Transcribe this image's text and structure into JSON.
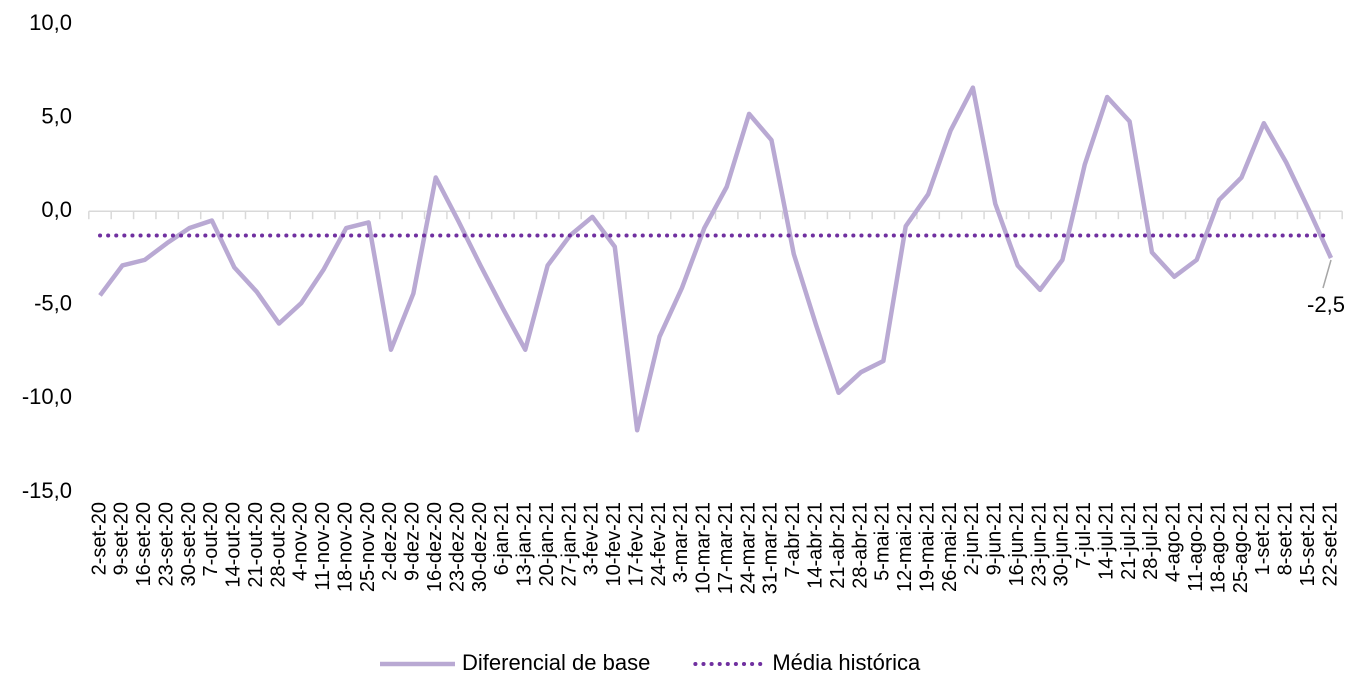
{
  "chart_data": {
    "type": "line",
    "categories": [
      "2-set-20",
      "9-set-20",
      "16-set-20",
      "23-set-20",
      "30-set-20",
      "7-out-20",
      "14-out-20",
      "21-out-20",
      "28-out-20",
      "4-nov-20",
      "11-nov-20",
      "18-nov-20",
      "25-nov-20",
      "2-dez-20",
      "9-dez-20",
      "16-dez-20",
      "23-dez-20",
      "30-dez-20",
      "6-jan-21",
      "13-jan-21",
      "20-jan-21",
      "27-jan-21",
      "3-fev-21",
      "10-fev-21",
      "17-fev-21",
      "24-fev-21",
      "3-mar-21",
      "10-mar-21",
      "17-mar-21",
      "24-mar-21",
      "31-mar-21",
      "7-abr-21",
      "14-abr-21",
      "21-abr-21",
      "28-abr-21",
      "5-mai-21",
      "12-mai-21",
      "19-mai-21",
      "26-mai-21",
      "2-jun-21",
      "9-jun-21",
      "16-jun-21",
      "23-jun-21",
      "30-jun-21",
      "7-jul-21",
      "14-jul-21",
      "21-jul-21",
      "28-jul-21",
      "4-ago-21",
      "11-ago-21",
      "18-ago-21",
      "25-ago-21",
      "1-set-21",
      "8-set-21",
      "15-set-21",
      "22-set-21"
    ],
    "series": [
      {
        "name": "Diferencial de base",
        "color": "#b9a9d3",
        "style": "solid",
        "values": [
          -4.5,
          -2.9,
          -2.6,
          -1.7,
          -0.9,
          -0.5,
          -3.0,
          -4.3,
          -6.0,
          -4.9,
          -3.1,
          -0.9,
          -0.6,
          -7.4,
          -4.4,
          1.8,
          -0.5,
          -2.9,
          -5.2,
          -7.4,
          -2.9,
          -1.3,
          -0.3,
          -1.9,
          -11.7,
          -6.7,
          -4.1,
          -0.9,
          1.3,
          5.2,
          3.8,
          -2.3,
          -6.1,
          -9.7,
          -8.6,
          -8.0,
          -0.8,
          0.9,
          4.3,
          6.6,
          0.4,
          -2.9,
          -4.2,
          -2.6,
          2.5,
          6.1,
          4.8,
          -2.2,
          -3.5,
          -2.6,
          0.6,
          1.8,
          4.7,
          2.6,
          0.1,
          -2.5
        ],
        "value_labels": [
          null,
          null,
          null,
          null,
          null,
          null,
          null,
          null,
          null,
          null,
          null,
          null,
          null,
          null,
          null,
          null,
          null,
          null,
          null,
          null,
          null,
          null,
          null,
          null,
          null,
          null,
          null,
          null,
          null,
          null,
          null,
          null,
          null,
          null,
          null,
          null,
          null,
          null,
          null,
          null,
          null,
          null,
          null,
          null,
          null,
          null,
          null,
          null,
          null,
          null,
          null,
          null,
          null,
          null,
          null,
          "-2,5"
        ]
      },
      {
        "name": "Média histórica",
        "color": "#7030a0",
        "style": "dotted",
        "values": [
          -1.3,
          -1.3,
          -1.3,
          -1.3,
          -1.3,
          -1.3,
          -1.3,
          -1.3,
          -1.3,
          -1.3,
          -1.3,
          -1.3,
          -1.3,
          -1.3,
          -1.3,
          -1.3,
          -1.3,
          -1.3,
          -1.3,
          -1.3,
          -1.3,
          -1.3,
          -1.3,
          -1.3,
          -1.3,
          -1.3,
          -1.3,
          -1.3,
          -1.3,
          -1.3,
          -1.3,
          -1.3,
          -1.3,
          -1.3,
          -1.3,
          -1.3,
          -1.3,
          -1.3,
          -1.3,
          -1.3,
          -1.3,
          -1.3,
          -1.3,
          -1.3,
          -1.3,
          -1.3,
          -1.3,
          -1.3,
          -1.3,
          -1.3,
          -1.3,
          -1.3,
          -1.3,
          -1.3,
          -1.3,
          -1.3
        ]
      }
    ],
    "ylim": [
      -15,
      10
    ],
    "yticks": [
      {
        "value": -15,
        "label": "-15,0"
      },
      {
        "value": -10,
        "label": "-10,0"
      },
      {
        "value": -5,
        "label": "-5,0"
      },
      {
        "value": 0,
        "label": "0,0"
      },
      {
        "value": 5,
        "label": "5,0"
      },
      {
        "value": 10,
        "label": "10,0"
      }
    ],
    "grid": false,
    "legend": "bottom"
  }
}
